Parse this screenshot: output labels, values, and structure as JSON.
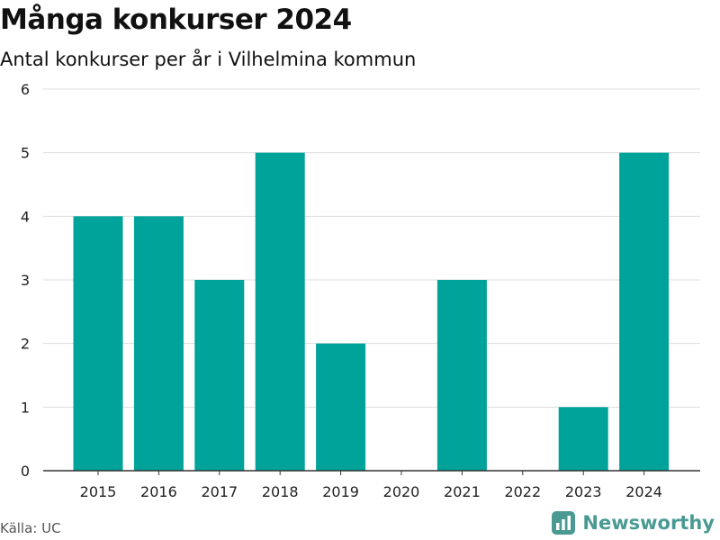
{
  "header": {
    "title": "Många konkurser 2024",
    "subtitle": "Antal konkurser per år i Vilhelmina kommun"
  },
  "footer": {
    "source": "Källa: UC",
    "brand": "Newsworthy"
  },
  "icons": {
    "brand_logo": "bar-chart-icon"
  },
  "colors": {
    "bar": "#00a399",
    "brand": "#4a9a93",
    "grid": "#dddddd",
    "axis": "#333333"
  },
  "chart_data": {
    "type": "bar",
    "title": "Många konkurser 2024",
    "subtitle": "Antal konkurser per år i Vilhelmina kommun",
    "xlabel": "",
    "ylabel": "",
    "categories": [
      "2015",
      "2016",
      "2017",
      "2018",
      "2019",
      "2020",
      "2021",
      "2022",
      "2023",
      "2024"
    ],
    "values": [
      4,
      4,
      3,
      5,
      2,
      0,
      3,
      0,
      1,
      5
    ],
    "ylim": [
      0,
      6
    ],
    "yticks": [
      0,
      1,
      2,
      3,
      4,
      5,
      6
    ],
    "grid": true,
    "legend": false
  }
}
